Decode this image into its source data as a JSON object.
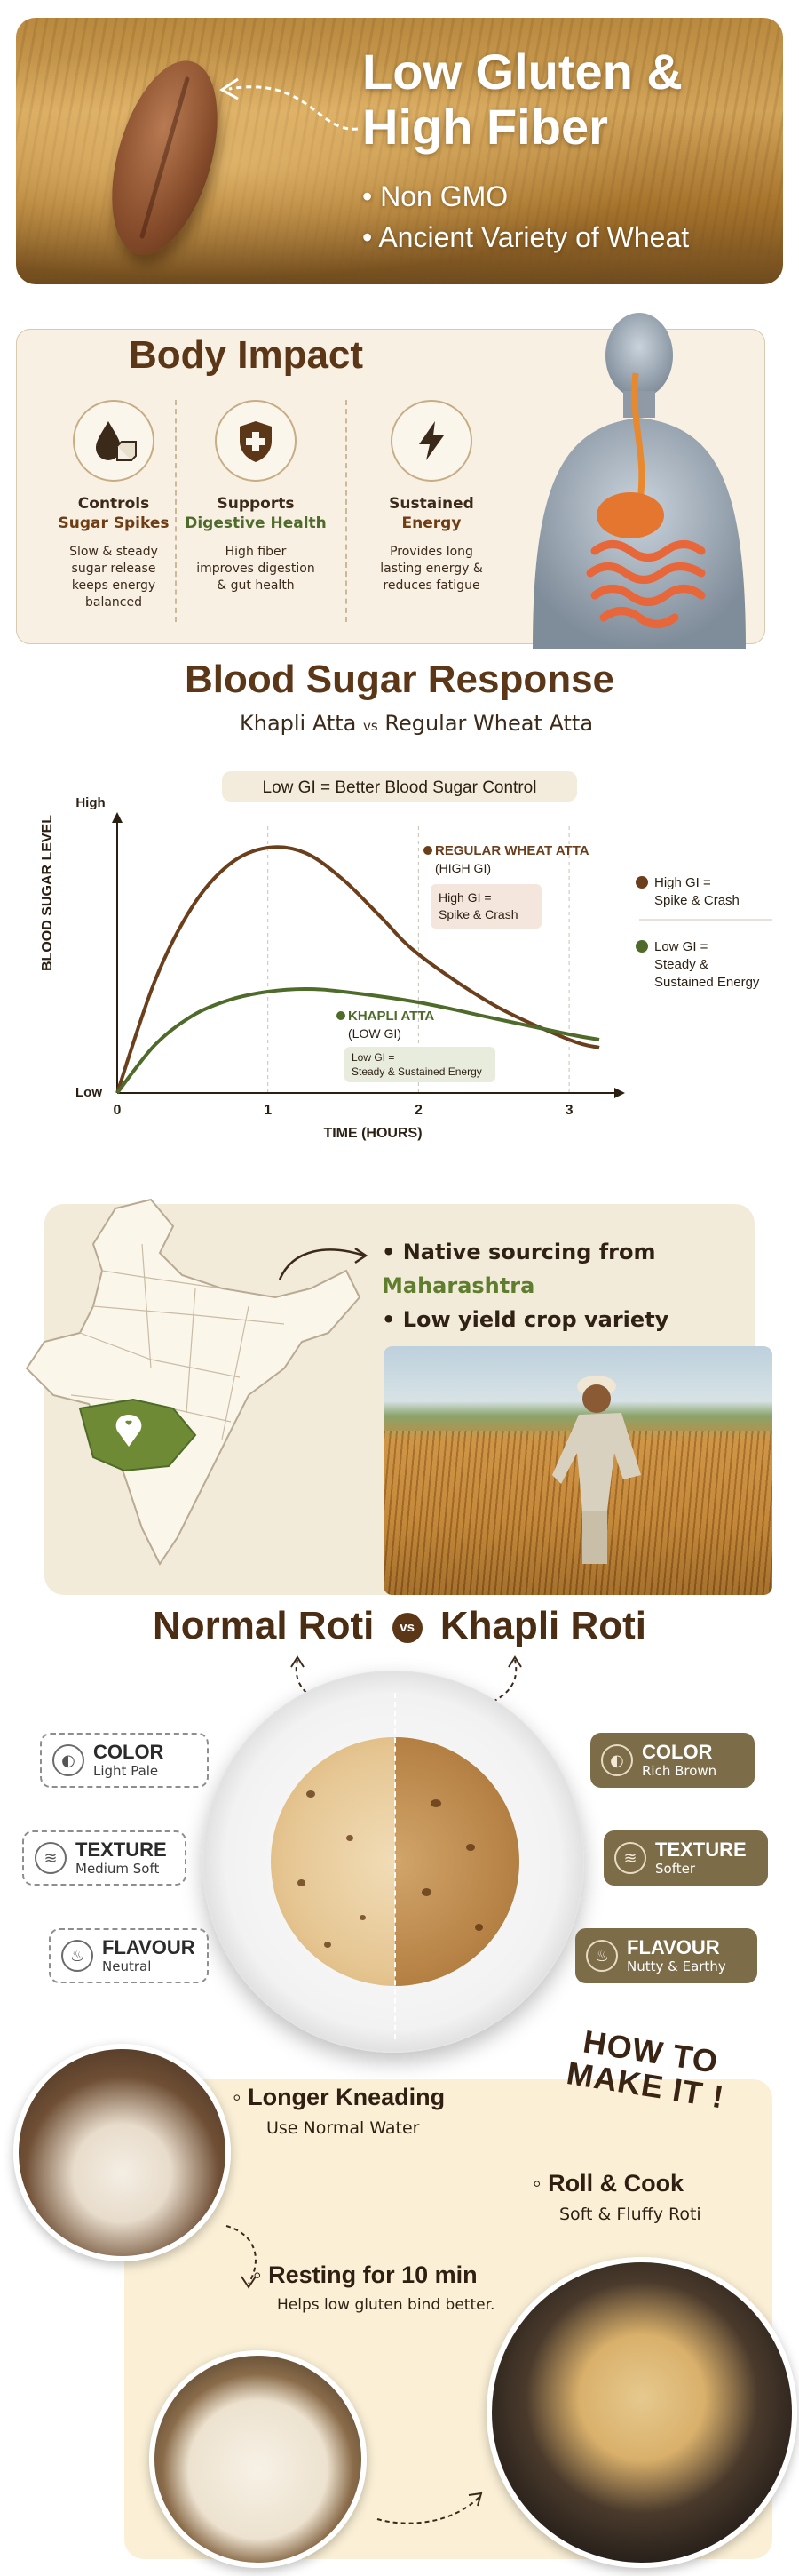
{
  "hero": {
    "title_line1": "Low Gluten &",
    "title_line2": "High Fiber",
    "points": [
      "Non GMO",
      "Ancient Variety of Wheat"
    ]
  },
  "body_impact": {
    "title": "Body Impact",
    "items": [
      {
        "icon": "sugar-drop-icon",
        "head_line1": "Controls",
        "head_line2": "Sugar Spikes",
        "desc_lines": [
          "Slow & steady",
          "sugar release",
          "keeps energy",
          "balanced"
        ]
      },
      {
        "icon": "shield-plus-icon",
        "head_line1": "Supports",
        "head_line2": "Digestive Health",
        "desc_lines": [
          "High fiber",
          "improves digestion",
          "& gut health"
        ]
      },
      {
        "icon": "lightning-icon",
        "head_line1": "Sustained",
        "head_line2": "Energy",
        "desc_lines": [
          "Provides long",
          "lasting energy &",
          "reduces fatigue"
        ]
      }
    ]
  },
  "blood_sugar": {
    "title": "Blood Sugar Response",
    "subtitle_left": "Khapli Atta",
    "subtitle_vs": "vs",
    "subtitle_right": "Regular Wheat Atta"
  },
  "chart_data": {
    "type": "line",
    "title": "Low GI = Better Blood Sugar Control",
    "xlabel": "TIME (HOURS)",
    "ylabel": "BLOOD SUGAR LEVEL",
    "x_ticks": [
      "0",
      "1",
      "2",
      "3"
    ],
    "y_ticks": [
      "Low",
      "High"
    ],
    "xlim": [
      0,
      3.3
    ],
    "ylim": [
      0,
      1
    ],
    "grid": "dashed vertical",
    "legend_position": "right",
    "series": [
      {
        "name": "REGULAR WHEAT ATTA",
        "label_sub": "(HIGH GI)",
        "color": "#6b3e1c",
        "x": [
          0,
          0.25,
          0.5,
          0.75,
          1.0,
          1.25,
          1.5,
          1.75,
          2.0,
          2.5,
          3.0,
          3.2
        ],
        "y": [
          0.0,
          0.42,
          0.7,
          0.86,
          0.92,
          0.9,
          0.8,
          0.66,
          0.52,
          0.33,
          0.2,
          0.17
        ],
        "callout": "High GI = Spike & Crash"
      },
      {
        "name": "KHAPLI ATTA",
        "label_sub": "(LOW GI)",
        "color": "#4e6b2a",
        "x": [
          0,
          0.25,
          0.5,
          0.75,
          1.0,
          1.25,
          1.5,
          2.0,
          2.5,
          3.0,
          3.2
        ],
        "y": [
          0.0,
          0.18,
          0.29,
          0.35,
          0.38,
          0.39,
          0.38,
          0.34,
          0.28,
          0.22,
          0.2
        ],
        "callout": "Low GI = Steady & Sustained Energy"
      }
    ],
    "legend": [
      {
        "label_line1": "High GI =",
        "label_line2": "Spike & Crash",
        "color": "#6b3e1c"
      },
      {
        "label_line1": "Low GI =",
        "label_line2": "Steady &",
        "label_line3": "Sustained Energy",
        "color": "#4e6b2a"
      }
    ]
  },
  "sourcing": {
    "point1_prefix": "Native sourcing from",
    "point1_accent": "Maharashtra",
    "point2": "Low yield crop variety",
    "accent_color": "#5e7d2d"
  },
  "roti": {
    "title_left": "Normal Roti",
    "vs": "vs",
    "title_right": "Khapli Roti",
    "normal": [
      {
        "icon": "color-swatch-icon",
        "head": "COLOR",
        "sub": "Light Pale"
      },
      {
        "icon": "texture-icon",
        "head": "TEXTURE",
        "sub": "Medium Soft"
      },
      {
        "icon": "flavour-icon",
        "head": "FLAVOUR",
        "sub": "Neutral"
      }
    ],
    "khapli": [
      {
        "icon": "color-swatch-icon",
        "head": "COLOR",
        "sub": "Rich Brown"
      },
      {
        "icon": "texture-icon",
        "head": "TEXTURE",
        "sub": "Softer"
      },
      {
        "icon": "flavour-icon",
        "head": "FLAVOUR",
        "sub": "Nutty & Earthy"
      }
    ]
  },
  "howto": {
    "title_line1": "HOW TO",
    "title_line2": "MAKE IT !",
    "steps": [
      {
        "head": "Longer Kneading",
        "sub": "Use Normal Water"
      },
      {
        "head": "Roll & Cook",
        "sub": "Soft & Fluffy Roti"
      },
      {
        "head": "Resting for 10 min",
        "sub": "Helps low gluten bind better."
      }
    ]
  }
}
